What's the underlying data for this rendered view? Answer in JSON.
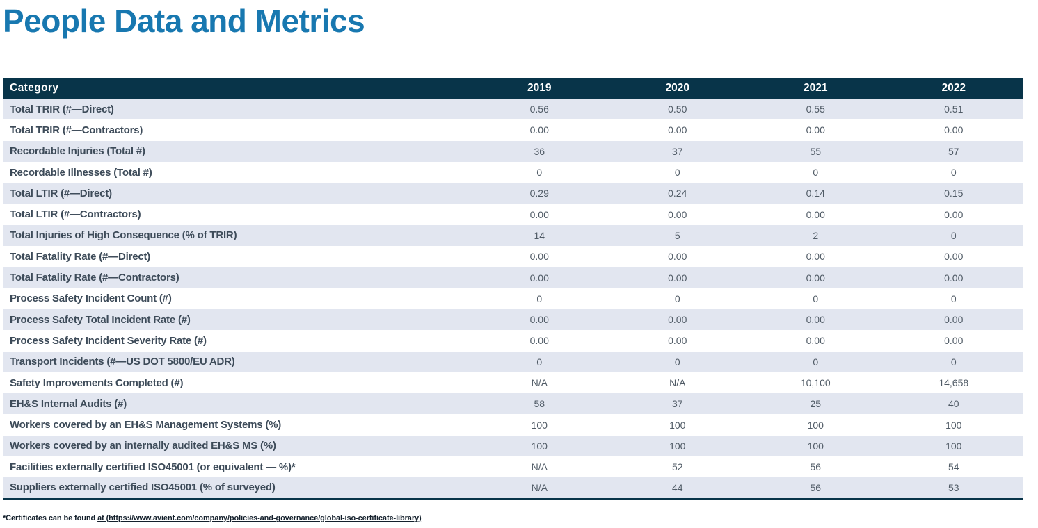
{
  "page": {
    "title": "People Data and Metrics"
  },
  "colors": {
    "accent": "#1878b0",
    "navy": "#083449",
    "stripe": "#e2e6f0",
    "label-ink": "#3d4b59",
    "value-ink": "#505b66",
    "footnote-ink": "#14202c"
  },
  "table": {
    "header": {
      "category": "Category",
      "years": [
        "2019",
        "2020",
        "2021",
        "2022"
      ]
    },
    "rows": [
      {
        "label": "Total TRIR (#—Direct)",
        "values": [
          "0.56",
          "0.50",
          "0.55",
          "0.51"
        ]
      },
      {
        "label": "Total TRIR (#—Contractors)",
        "values": [
          "0.00",
          "0.00",
          "0.00",
          "0.00"
        ]
      },
      {
        "label": "Recordable Injuries (Total #)",
        "values": [
          "36",
          "37",
          "55",
          "57"
        ]
      },
      {
        "label": "Recordable Illnesses (Total #)",
        "values": [
          "0",
          "0",
          "0",
          "0"
        ]
      },
      {
        "label": "Total LTIR (#—Direct)",
        "values": [
          "0.29",
          "0.24",
          "0.14",
          "0.15"
        ]
      },
      {
        "label": "Total LTIR (#—Contractors)",
        "values": [
          "0.00",
          "0.00",
          "0.00",
          "0.00"
        ]
      },
      {
        "label": "Total Injuries of High Consequence (% of TRIR)",
        "values": [
          "14",
          "5",
          "2",
          "0"
        ]
      },
      {
        "label": "Total Fatality Rate (#—Direct)",
        "values": [
          "0.00",
          "0.00",
          "0.00",
          "0.00"
        ]
      },
      {
        "label": "Total Fatality Rate (#—Contractors)",
        "values": [
          "0.00",
          "0.00",
          "0.00",
          "0.00"
        ]
      },
      {
        "label": "Process Safety Incident Count (#)",
        "values": [
          "0",
          "0",
          "0",
          "0"
        ]
      },
      {
        "label": "Process Safety Total Incident Rate (#)",
        "values": [
          "0.00",
          "0.00",
          "0.00",
          "0.00"
        ]
      },
      {
        "label": "Process Safety Incident Severity Rate (#)",
        "values": [
          "0.00",
          "0.00",
          "0.00",
          "0.00"
        ]
      },
      {
        "label": "Transport Incidents (#—US DOT 5800/EU ADR)",
        "values": [
          "0",
          "0",
          "0",
          "0"
        ]
      },
      {
        "label": "Safety Improvements Completed (#)",
        "values": [
          "N/A",
          "N/A",
          "10,100",
          "14,658"
        ]
      },
      {
        "label": "EH&S Internal Audits (#)",
        "values": [
          "58",
          "37",
          "25",
          "40"
        ]
      },
      {
        "label": "Workers covered by an EH&S Management Systems (%)",
        "values": [
          "100",
          "100",
          "100",
          "100"
        ]
      },
      {
        "label": "Workers covered by an internally audited EH&S MS (%)",
        "values": [
          "100",
          "100",
          "100",
          "100"
        ]
      },
      {
        "label": "Facilities externally certified ISO45001 (or equivalent — %)*",
        "values": [
          "N/A",
          "52",
          "56",
          "54"
        ]
      },
      {
        "label": "Suppliers externally certified ISO45001 (% of surveyed)",
        "values": [
          "N/A",
          "44",
          "56",
          "53"
        ]
      }
    ]
  },
  "footnote": {
    "prefix": "*Certificates can be found ",
    "link": "at (https://www.avient.com/company/policies-and-governance/global-iso-certificate-library)"
  }
}
